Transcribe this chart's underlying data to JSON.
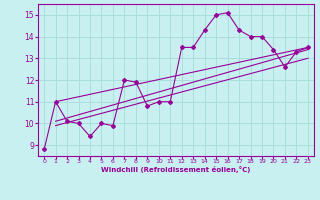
{
  "bg_color": "#c8f0f0",
  "line_color": "#990099",
  "grid_color": "#aadddd",
  "xlabel": "Windchill (Refroidissement éolien,°C)",
  "xlabel_color": "#990099",
  "tick_color": "#990099",
  "xlim": [
    -0.5,
    23.5
  ],
  "ylim": [
    8.5,
    15.5
  ],
  "yticks": [
    9,
    10,
    11,
    12,
    13,
    14,
    15
  ],
  "xticks": [
    0,
    1,
    2,
    3,
    4,
    5,
    6,
    7,
    8,
    9,
    10,
    11,
    12,
    13,
    14,
    15,
    16,
    17,
    18,
    19,
    20,
    21,
    22,
    23
  ],
  "series1_x": [
    0,
    1,
    2,
    3,
    4,
    5,
    6,
    7,
    8,
    9,
    10,
    11,
    12,
    13,
    14,
    15,
    16,
    17,
    18,
    19,
    20,
    21,
    22,
    23
  ],
  "series1_y": [
    8.8,
    11.0,
    10.1,
    10.0,
    9.4,
    10.0,
    9.9,
    12.0,
    11.9,
    10.8,
    11.0,
    11.0,
    13.5,
    13.5,
    14.3,
    15.0,
    15.1,
    14.3,
    14.0,
    14.0,
    13.4,
    12.6,
    13.3,
    13.5
  ],
  "series2_x": [
    1,
    23
  ],
  "series2_y": [
    11.0,
    13.5
  ],
  "series3_x": [
    1,
    23
  ],
  "series3_y": [
    10.1,
    13.4
  ],
  "series4_x": [
    1,
    23
  ],
  "series4_y": [
    9.9,
    13.0
  ]
}
